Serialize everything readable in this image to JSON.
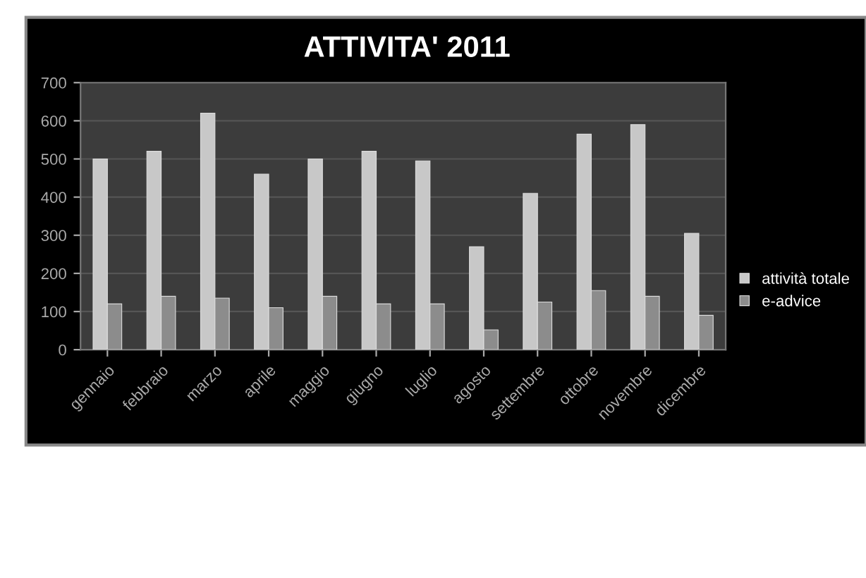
{
  "chart_data": {
    "type": "bar",
    "title": "ATTIVITA' 2011",
    "categories": [
      "gennaio",
      "febbraio",
      "marzo",
      "aprile",
      "maggio",
      "giugno",
      "luglio",
      "agosto",
      "settembre",
      "ottobre",
      "novembre",
      "dicembre"
    ],
    "series": [
      {
        "name": "attività totale",
        "color": "#c8c8c8",
        "values": [
          500,
          520,
          620,
          460,
          500,
          520,
          495,
          270,
          410,
          565,
          590,
          305
        ]
      },
      {
        "name": "e-advice",
        "color": "#8c8c8c",
        "values": [
          120,
          140,
          135,
          110,
          140,
          120,
          120,
          52,
          125,
          155,
          140,
          90
        ]
      }
    ],
    "ylim": [
      0,
      700
    ],
    "yticks": [
      0,
      100,
      200,
      300,
      400,
      500,
      600,
      700
    ],
    "grid": "y",
    "legend": "right"
  }
}
